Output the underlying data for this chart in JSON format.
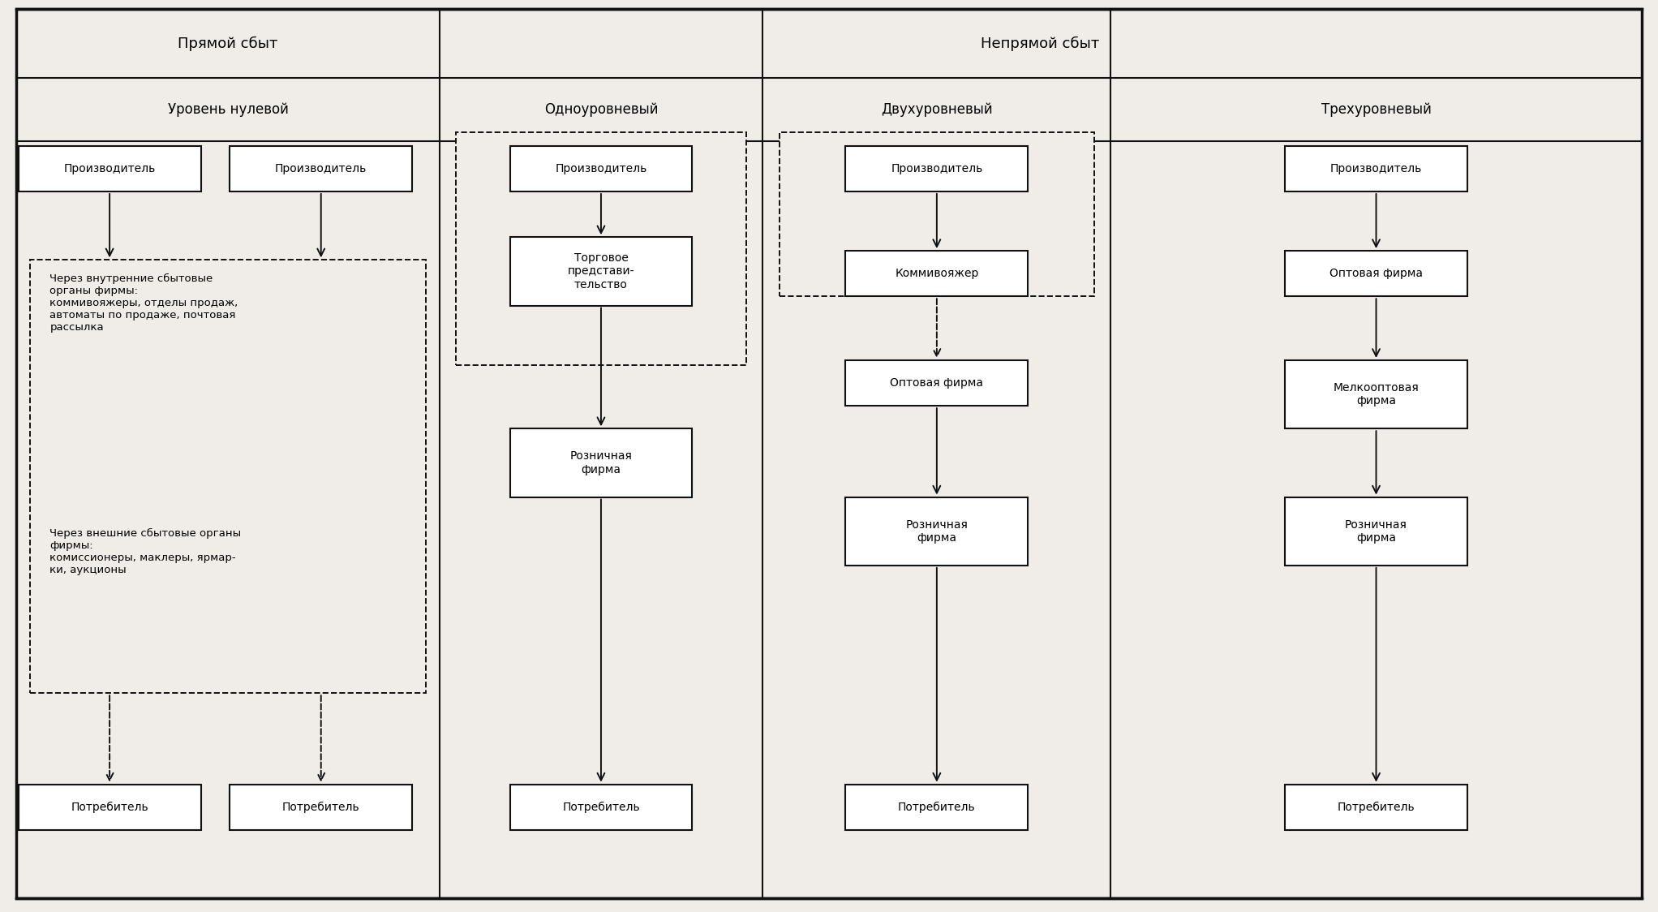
{
  "fig_width": 20.44,
  "fig_height": 11.24,
  "bg_color": "#f0ede8",
  "header1_text": "Прямой сбыт",
  "header2_text": "Непрямой сбыт",
  "subheader_col0": "Уровень нулевой",
  "subheader_col1": "Одноуровневый",
  "subheader_col2": "Двухуровневый",
  "subheader_col3": "Трехуровневый",
  "col0_dashed_text_1": "Через внутренние сбытовые\nорганы фирмы:\nкоммивояжеры, отделы продаж,\nавтоматы по продаже, почтовая\nрассылка",
  "col0_dashed_text_2": "Через внешние сбытовые органы\nфирмы:\nкомиссионеры, маклеры, ярмар-\nки, аукционы"
}
